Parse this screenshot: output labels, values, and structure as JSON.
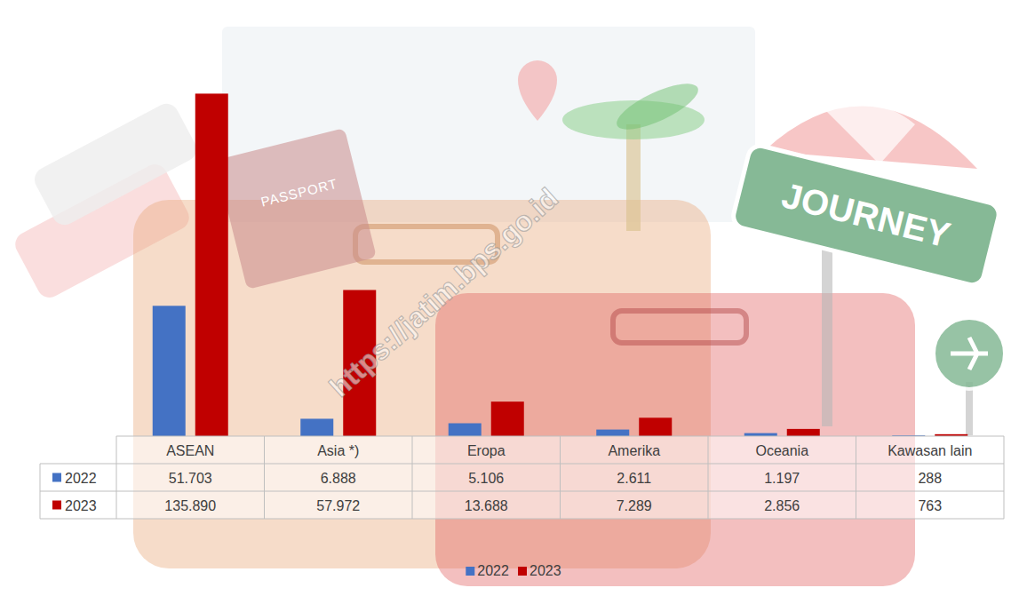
{
  "chart_data": {
    "type": "bar",
    "categories": [
      "ASEAN",
      "Asia *)",
      "Eropa",
      "Amerika",
      "Oceania",
      "Kawasan lain"
    ],
    "series": [
      {
        "name": "2022",
        "color": "#4472c4",
        "values": [
          51703,
          6888,
          5106,
          2611,
          1197,
          288
        ],
        "value_labels": [
          "51.703",
          "6.888",
          "5.106",
          "2.611",
          "1.197",
          "288"
        ]
      },
      {
        "name": "2023",
        "color": "#c00000",
        "values": [
          135890,
          57972,
          13688,
          7289,
          2856,
          763
        ],
        "value_labels": [
          "135.890",
          "57.972",
          "13.688",
          "7.289",
          "2.856",
          "763"
        ]
      }
    ],
    "ylim": [
      0,
      160000
    ],
    "tick_labels": false,
    "grid": false,
    "legend": "bottom",
    "data_labels": false,
    "annotations": [
      "PASSPORT",
      "JOURNEY",
      "https://jatim.bps.go.id"
    ]
  }
}
